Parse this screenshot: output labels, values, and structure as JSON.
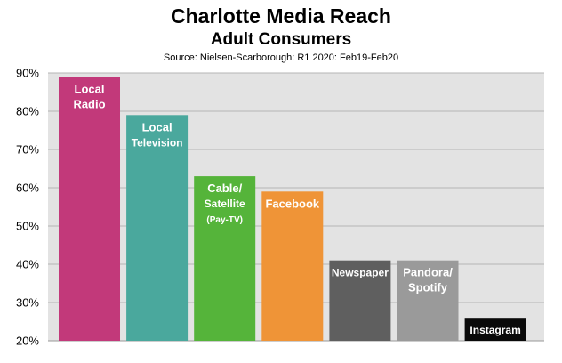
{
  "chart_data": {
    "type": "bar",
    "title": "Charlotte Media Reach",
    "subtitle": "Adult Consumers",
    "source": "Source: Nielsen-Scarborough: R1 2020: Feb19-Feb20",
    "xlabel": "",
    "ylabel": "",
    "ylim": [
      20,
      90
    ],
    "yticks": [
      "20%",
      "30%",
      "40%",
      "50%",
      "60%",
      "70%",
      "80%",
      "90%"
    ],
    "grid": true,
    "legend": "none",
    "categories": [
      "Local Radio",
      "Local Television",
      "Cable/ Satellite (Pay-TV)",
      "Facebook",
      "Newspaper",
      "Pandora/ Spotify",
      "Instagram"
    ],
    "values": [
      89,
      79,
      63,
      59,
      41,
      41,
      26
    ],
    "bars": [
      {
        "lines": [
          "Local",
          "Radio"
        ],
        "color": "#c2397a"
      },
      {
        "lines": [
          "Local",
          "Television"
        ],
        "color": "#4aa89d"
      },
      {
        "lines": [
          "Cable/",
          "Satellite",
          "(Pay-TV)"
        ],
        "color": "#55b43a"
      },
      {
        "lines": [
          "Facebook"
        ],
        "color": "#ef9437"
      },
      {
        "lines": [
          "Newspaper"
        ],
        "color": "#5f5f5f"
      },
      {
        "lines": [
          "Pandora/",
          "Spotify"
        ],
        "color": "#9a9a9a"
      },
      {
        "lines": [
          "Instagram"
        ],
        "color": "#0a0a0a"
      }
    ]
  }
}
